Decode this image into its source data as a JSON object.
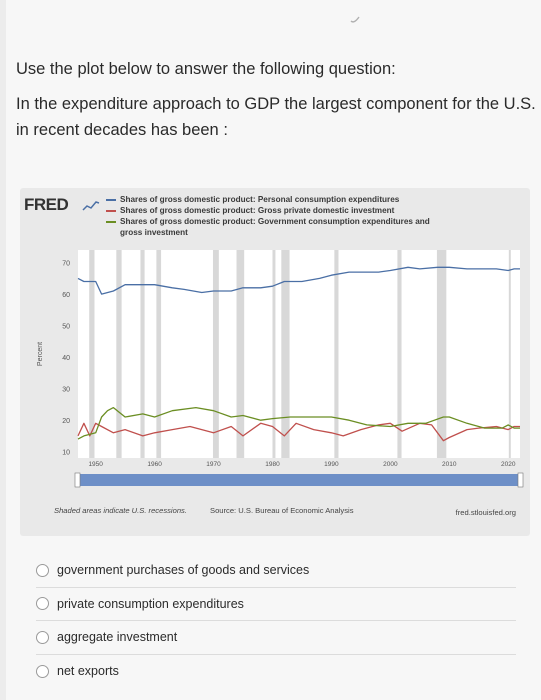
{
  "question": {
    "instruction": "Use the plot below to answer the following question:",
    "text": "In the expenditure approach to GDP the largest component for the U.S. in recent decades has been :"
  },
  "figure": {
    "logo": "FRED",
    "footer_note": "Shaded areas indicate U.S. recessions.",
    "source": "Source: U.S. Bureau of Economic Analysis",
    "site": "fred.stlouisfed.org"
  },
  "chart_data": {
    "type": "line",
    "title": "",
    "ylabel": "Percent",
    "xlabel": "",
    "ylim": [
      8,
      74
    ],
    "xlim": [
      1947,
      2022
    ],
    "y_ticks": [
      10,
      20,
      30,
      40,
      50,
      60,
      70
    ],
    "x_ticks": [
      "1950",
      "1960",
      "1970",
      "1980",
      "1990",
      "2000",
      "2010",
      "2020"
    ],
    "legend_placement": "top",
    "grid": false,
    "recessions": [
      [
        1948.9,
        1949.8
      ],
      [
        1953.5,
        1954.4
      ],
      [
        1957.6,
        1958.3
      ],
      [
        1960.3,
        1961.1
      ],
      [
        1969.9,
        1970.9
      ],
      [
        1973.9,
        1975.2
      ],
      [
        1980.0,
        1980.5
      ],
      [
        1981.5,
        1982.9
      ],
      [
        1990.5,
        1991.2
      ],
      [
        2001.2,
        2001.9
      ],
      [
        2007.9,
        2009.5
      ],
      [
        2020.1,
        2020.4
      ]
    ],
    "series": [
      {
        "name": "Shares of gross domestic product: Personal consumption expenditures",
        "color": "#4a6fa5",
        "x": [
          1947,
          1948,
          1950,
          1951,
          1953,
          1955,
          1958,
          1960,
          1963,
          1965,
          1968,
          1970,
          1973,
          1975,
          1978,
          1980,
          1982,
          1985,
          1988,
          1990,
          1993,
          1995,
          1998,
          2000,
          2003,
          2005,
          2008,
          2010,
          2013,
          2015,
          2018,
          2020,
          2021,
          2022
        ],
        "values": [
          65,
          64,
          64,
          60,
          61,
          63,
          63,
          63,
          62,
          61.5,
          60.5,
          61,
          61,
          62,
          62,
          62.5,
          64,
          64,
          65,
          66,
          67,
          67,
          67,
          67.5,
          68.5,
          68,
          68.5,
          68.5,
          68,
          68,
          68,
          67.5,
          68,
          68
        ]
      },
      {
        "name": "Shares of gross domestic product: Gross private domestic investment",
        "color": "#c0504d",
        "x": [
          1947,
          1948,
          1949,
          1950,
          1951,
          1953,
          1955,
          1958,
          1960,
          1963,
          1966,
          1970,
          1973,
          1975,
          1978,
          1980,
          1982,
          1984,
          1987,
          1990,
          1992,
          1995,
          1998,
          2000,
          2002,
          2005,
          2007,
          2009,
          2010,
          2013,
          2015,
          2018,
          2020,
          2021,
          2022
        ],
        "values": [
          15,
          19,
          15,
          19,
          18,
          16,
          17,
          15,
          16,
          17,
          18,
          16,
          18,
          15,
          19,
          18,
          15,
          19,
          17,
          16,
          15,
          17,
          18.5,
          19,
          16.5,
          19,
          18.5,
          13.5,
          14.5,
          17,
          17.5,
          18,
          17,
          18,
          18
        ]
      },
      {
        "name": "Shares of gross domestic product: Government consumption expenditures and gross investment",
        "color": "#6b8e23",
        "x": [
          1947,
          1948,
          1950,
          1951,
          1952,
          1953,
          1955,
          1958,
          1960,
          1963,
          1967,
          1970,
          1973,
          1975,
          1978,
          1980,
          1983,
          1986,
          1990,
          1993,
          1996,
          2000,
          2003,
          2006,
          2009,
          2010,
          2013,
          2016,
          2019,
          2020,
          2021,
          2022
        ],
        "values": [
          14,
          15,
          16,
          21,
          23,
          24,
          21,
          22,
          21,
          23,
          24,
          23,
          21,
          21.5,
          20,
          20.5,
          21,
          21,
          21,
          20,
          18.5,
          18,
          19,
          19,
          21,
          21,
          19,
          17.5,
          17.5,
          18.5,
          17.5,
          17.5
        ]
      }
    ]
  },
  "options": [
    {
      "label": "government purchases of goods and services"
    },
    {
      "label": "private consumption expenditures"
    },
    {
      "label": "aggregate investment"
    },
    {
      "label": "net exports"
    }
  ]
}
